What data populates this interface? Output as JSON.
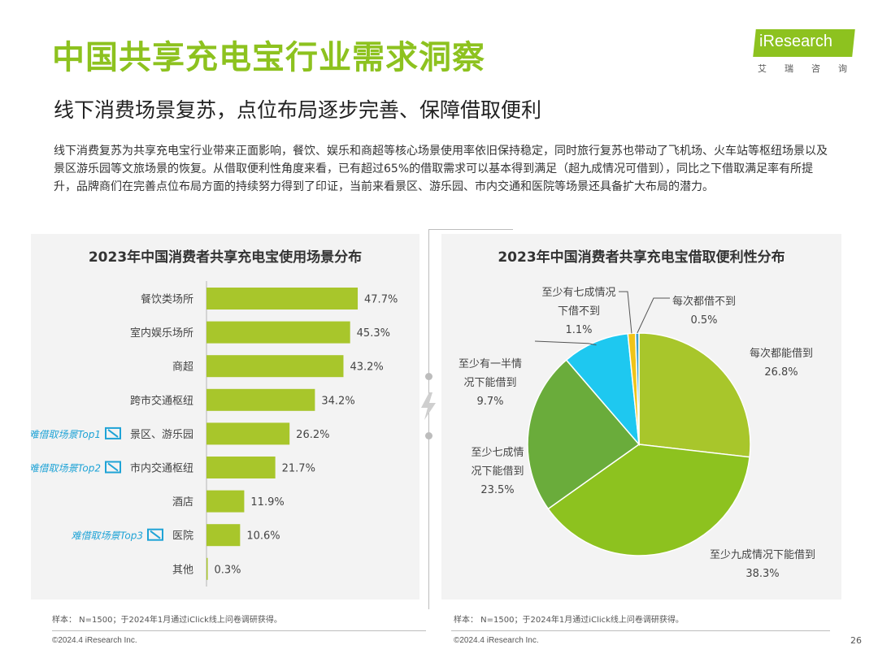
{
  "header": {
    "title": "中国共享充电宝行业需求洞察",
    "subtitle": "线下消费场景复苏，点位布局逐步完善、保障借取便利",
    "body": "线下消费复苏为共享充电宝行业带来正面影响，餐饮、娱乐和商超等核心场景使用率依旧保持稳定，同时旅行复苏也带动了飞机场、火车站等枢纽场景以及景区游乐园等文旅场景的恢复。从借取便利性角度来看，已有超过65%的借取需求可以基本得到满足（超九成情况可借到），同比之下借取满足率有所提升，品牌商们在完善点位布局方面的持续努力得到了印证，当前来看景区、游乐园、市内交通和医院等场景还具备扩大布局的潜力。"
  },
  "logo": {
    "text": "iResearch",
    "sub": "艾瑞咨询",
    "color": "#8dc21f"
  },
  "colors": {
    "accent": "#8dc21f",
    "annotation": "#1fa3d6",
    "pie_dark": "#6aac3b",
    "pie_blue": "#1ec8f0",
    "pie_yellow": "#f0c419",
    "pie_tiny": "#3aa0d0"
  },
  "chart_data": [
    {
      "type": "bar",
      "orientation": "horizontal",
      "title": "2023年中国消费者共享充电宝使用场景分布",
      "categories": [
        "餐饮类场所",
        "室内娱乐场所",
        "商超",
        "跨市交通枢纽",
        "景区、游乐园",
        "市内交通枢纽",
        "酒店",
        "医院",
        "其他"
      ],
      "values": [
        47.7,
        45.3,
        43.2,
        34.2,
        26.2,
        21.7,
        11.9,
        10.6,
        0.3
      ],
      "value_labels": [
        "47.7%",
        "45.3%",
        "43.2%",
        "34.2%",
        "26.2%",
        "21.7%",
        "11.9%",
        "10.6%",
        "0.3%"
      ],
      "annotations": [
        {
          "category": "景区、游乐园",
          "text": "难借取场景Top1"
        },
        {
          "category": "市内交通枢纽",
          "text": "难借取场景Top2"
        },
        {
          "category": "医院",
          "text": "难借取场景Top3"
        }
      ],
      "xlim": [
        0,
        50
      ],
      "color": "#a8c62b",
      "note": "样本： N=1500；于2024年1月通过iClick线上问卷调研获得。"
    },
    {
      "type": "pie",
      "title": "2023年中国消费者共享充电宝借取便利性分布",
      "slices": [
        {
          "label": "每次都能借到",
          "value": 26.8,
          "value_label": "26.8%",
          "color": "#a8c62b"
        },
        {
          "label": "至少九成情况下能借到",
          "value": 38.3,
          "value_label": "38.3%",
          "color": "#8dc21f"
        },
        {
          "label": "至少七成情况下能借到",
          "value": 23.5,
          "value_label": "23.5%",
          "color": "#6aac3b"
        },
        {
          "label": "至少有一半情况下能借到",
          "value": 9.7,
          "value_label": "9.7%",
          "color": "#1ec8f0"
        },
        {
          "label": "至少有七成情况下借不到",
          "value": 1.1,
          "value_label": "1.1%",
          "color": "#f0c419"
        },
        {
          "label": "每次都借不到",
          "value": 0.5,
          "value_label": "0.5%",
          "color": "#3aa0d0"
        }
      ],
      "note": "样本： N=1500；于2024年1月通过iClick线上问卷调研获得。"
    }
  ],
  "pie_labels": {
    "s0": [
      "每次都能借到",
      "26.8%"
    ],
    "s1": [
      "至少九成情况下能借到",
      "38.3%"
    ],
    "s2": [
      "至少七成情",
      "况下能借到",
      "23.5%"
    ],
    "s3": [
      "至少有一半情",
      "况下能借到",
      "9.7%"
    ],
    "s4": [
      "至少有七成情况",
      "下借不到",
      "1.1%"
    ],
    "s5": [
      "每次都借不到",
      "0.5%"
    ]
  },
  "footer": {
    "copyright": "©2024.4 iResearch Inc.",
    "page": "26"
  }
}
